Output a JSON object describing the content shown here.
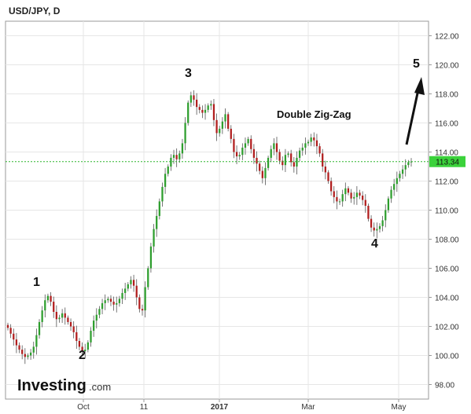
{
  "chart_data": {
    "type": "candlestick",
    "title": "USD/JPY, D",
    "ylim": [
      97,
      123
    ],
    "y_ticks": [
      "98.00",
      "100.00",
      "102.00",
      "104.00",
      "106.00",
      "108.00",
      "110.00",
      "112.00",
      "114.00",
      "116.00",
      "118.00",
      "120.00",
      "122.00"
    ],
    "x_ticks": [
      "Oct",
      "11",
      "2017",
      "Mar",
      "May"
    ],
    "last_price": "113.34",
    "up_color": "#2e9e2e",
    "down_color": "#b11e1e",
    "price_line_color": "#2fb52f",
    "series": [
      {
        "values": [
          101.9,
          101.5,
          101.1,
          100.7,
          100.4,
          100.1,
          99.9,
          100.0,
          100.2,
          100.6,
          101.4,
          102.3,
          103.1,
          103.8,
          104.1,
          103.7,
          103.0,
          102.5,
          102.6,
          102.9,
          102.6,
          102.3,
          102.0,
          101.6,
          101.0,
          100.6,
          100.3,
          100.4,
          100.9,
          101.7,
          102.4,
          102.8,
          103.2,
          103.6,
          103.8,
          103.9,
          103.7,
          103.5,
          103.6,
          103.9,
          104.3,
          104.6,
          104.9,
          105.2,
          104.8,
          104.0,
          103.2,
          103.1,
          104.7,
          106.0,
          107.5,
          108.7,
          109.6,
          110.6,
          111.6,
          112.5,
          113.0,
          113.6,
          113.8,
          113.5,
          113.9,
          114.6,
          116.0,
          117.4,
          117.9,
          117.6,
          117.1,
          116.9,
          116.7,
          116.9,
          117.2,
          117.3,
          116.2,
          115.3,
          115.6,
          116.1,
          116.6,
          115.6,
          114.9,
          114.0,
          113.7,
          113.8,
          114.3,
          114.6,
          114.9,
          114.2,
          113.6,
          113.2,
          112.7,
          112.2,
          112.9,
          113.6,
          114.2,
          114.6,
          114.0,
          113.4,
          113.1,
          113.8,
          113.9,
          113.3,
          113.0,
          113.6,
          114.1,
          114.3,
          114.6,
          114.7,
          115.0,
          114.8,
          114.4,
          113.9,
          113.0,
          112.6,
          112.0,
          111.3,
          110.9,
          110.6,
          110.6,
          111.1,
          111.5,
          111.2,
          110.8,
          110.9,
          111.2,
          111.0,
          110.7,
          110.3,
          109.4,
          108.8,
          108.6,
          108.7,
          108.9,
          109.3,
          110.0,
          110.8,
          111.4,
          111.8,
          112.2,
          112.5,
          112.8,
          113.1,
          113.3,
          113.34
        ]
      }
    ],
    "annotations": {
      "wave_labels": [
        "1",
        "2",
        "3",
        "4",
        "5"
      ],
      "pattern_label": "Double Zig-Zag"
    }
  },
  "brand": {
    "name": "Investing",
    "suffix": ".com"
  }
}
